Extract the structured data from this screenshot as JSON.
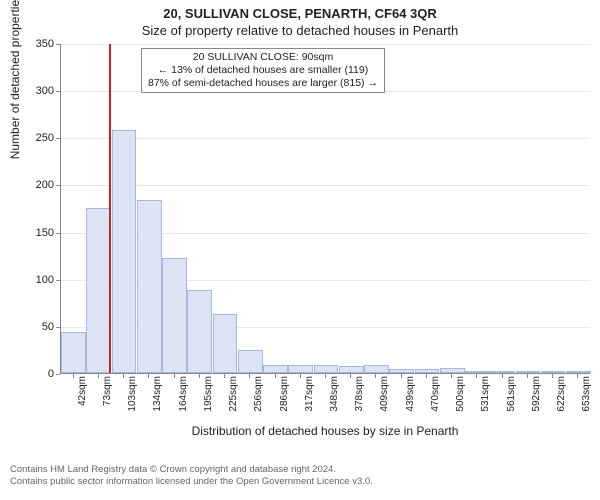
{
  "header": {
    "title": "20, SULLIVAN CLOSE, PENARTH, CF64 3QR",
    "subtitle": "Size of property relative to detached houses in Penarth"
  },
  "chart": {
    "type": "histogram",
    "xlabel": "Distribution of detached houses by size in Penarth",
    "ylabel": "Number of detached properties",
    "ylim": [
      0,
      350
    ],
    "ytick_step": 50,
    "bar_fill": "#dbe3f4",
    "bar_stroke": "#a6b8dc",
    "grid_color": "#e8e8e8",
    "axis_color": "#888888",
    "marker_color": "#cc2222",
    "background": "#ffffff",
    "x_categories": [
      "42sqm",
      "73sqm",
      "103sqm",
      "134sqm",
      "164sqm",
      "195sqm",
      "225sqm",
      "256sqm",
      "286sqm",
      "317sqm",
      "348sqm",
      "378sqm",
      "409sqm",
      "439sqm",
      "470sqm",
      "500sqm",
      "531sqm",
      "561sqm",
      "592sqm",
      "622sqm",
      "653sqm"
    ],
    "values": [
      43,
      175,
      258,
      183,
      122,
      88,
      63,
      24,
      8,
      9,
      8,
      7,
      8,
      4,
      4,
      5,
      0,
      2,
      0,
      1,
      1
    ],
    "marker_position": 1.9,
    "annotation": {
      "lines": [
        "20 SULLIVAN CLOSE: 90sqm",
        "← 13% of detached houses are smaller (119)",
        "87% of semi-detached houses are larger (815) →"
      ]
    },
    "label_fontsize": 12,
    "tick_fontsize": 11,
    "xtick_fontsize": 10
  },
  "footer": {
    "line1": "Contains HM Land Registry data © Crown copyright and database right 2024.",
    "line2": "Contains public sector information licensed under the Open Government Licence v3.0."
  }
}
